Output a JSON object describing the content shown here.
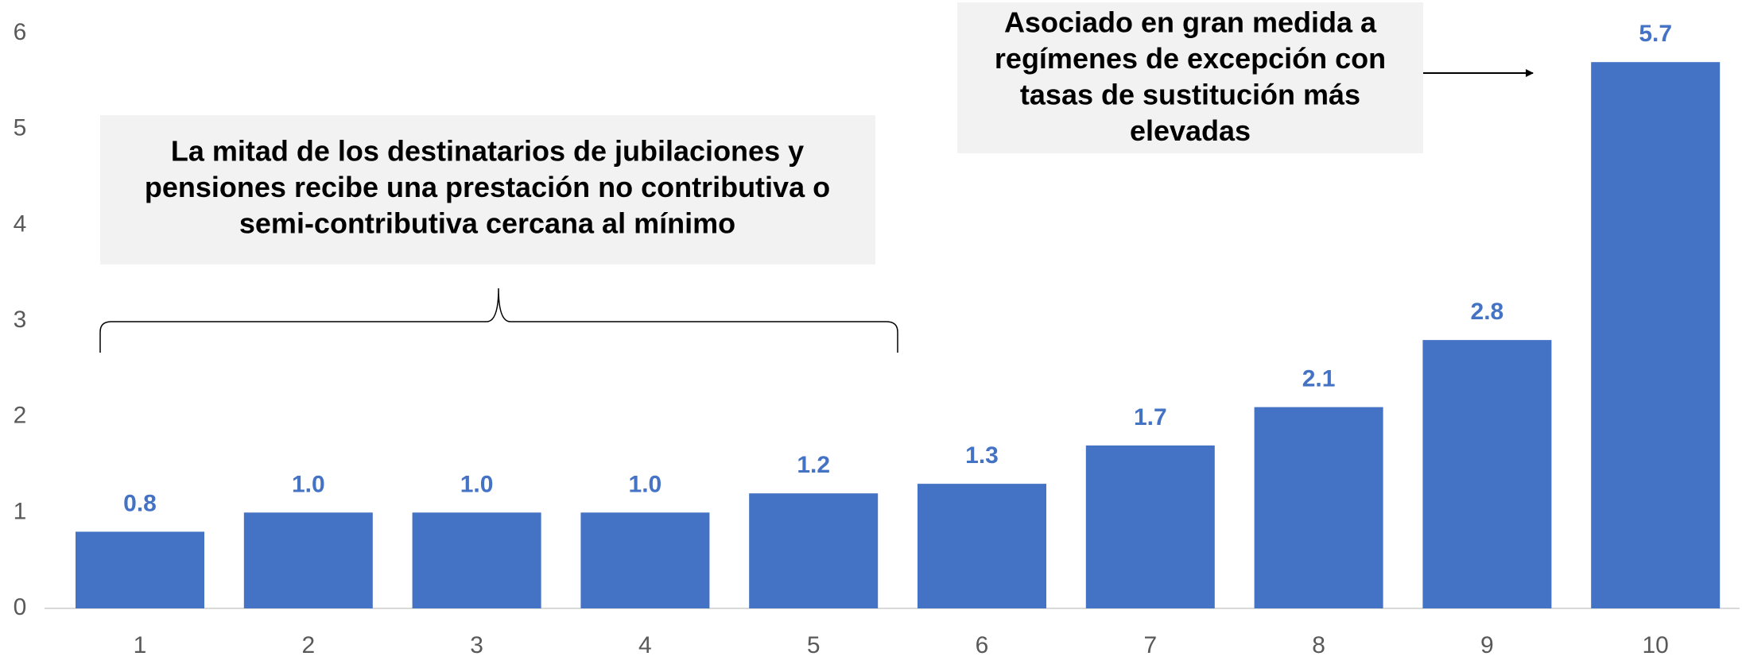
{
  "chart_data": {
    "type": "bar",
    "categories": [
      "1",
      "2",
      "3",
      "4",
      "5",
      "6",
      "7",
      "8",
      "9",
      "10"
    ],
    "values": [
      0.8,
      1.0,
      1.0,
      1.0,
      1.2,
      1.3,
      1.7,
      2.1,
      2.8,
      5.7
    ],
    "value_labels": [
      "0.8",
      "1.0",
      "1.0",
      "1.0",
      "1.2",
      "1.3",
      "1.7",
      "2.1",
      "2.8",
      "5.7"
    ],
    "color": "#4472c4",
    "ylim": [
      0,
      6
    ],
    "yticks": [
      0,
      1,
      2,
      3,
      4,
      5,
      6
    ],
    "grid": false,
    "annotations": [
      {
        "lines": [
          "La mitad de los destinatarios de jubilaciones y",
          "pensiones recibe una prestación no contributiva o",
          "semi-contributiva cercana al mínimo"
        ]
      },
      {
        "lines": [
          "Asociado en gran medida a",
          "regímenes de excepción con",
          "tasas de sustitución más",
          "elevadas"
        ]
      }
    ]
  }
}
